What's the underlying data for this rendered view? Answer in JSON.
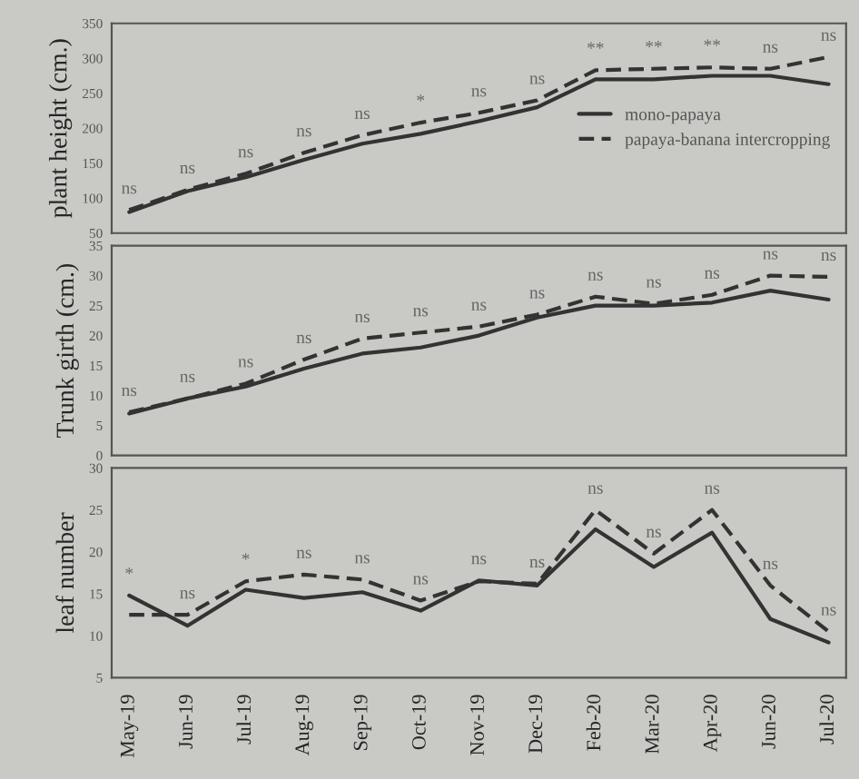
{
  "chart_data": [
    {
      "type": "line",
      "ylabel": "plant height (cm.)",
      "categories": [
        null,
        null,
        null,
        null,
        null,
        null,
        null,
        null,
        null,
        null,
        null,
        null,
        null
      ],
      "series": [
        {
          "name": "mono-papaya",
          "color": "#333333",
          "line_style": "solid",
          "values": [
            80,
            110,
            130,
            155,
            178,
            192,
            210,
            230,
            270,
            270,
            275,
            275,
            263
          ]
        },
        {
          "name": "papaya-banana intercropping",
          "color": "#333333",
          "line_style": "dashed",
          "values": [
            83,
            112,
            135,
            165,
            190,
            208,
            222,
            240,
            283,
            285,
            287,
            285,
            302
          ]
        }
      ],
      "ylim": [
        50,
        350
      ],
      "yticks": [
        50,
        100,
        150,
        200,
        250,
        300,
        350
      ],
      "tick_labels": "y",
      "legend": "right",
      "grid": false,
      "marker": "none",
      "annotations": [
        "ns",
        "ns",
        "ns",
        "ns",
        "ns",
        "*",
        "ns",
        "ns",
        "**",
        "**",
        "**",
        "ns",
        "ns"
      ]
    },
    {
      "type": "line",
      "ylabel": "Trunk girth (cm.)",
      "categories": [
        null,
        null,
        null,
        null,
        null,
        null,
        null,
        null,
        null,
        null,
        null,
        null,
        null
      ],
      "series": [
        {
          "color": "#333333",
          "line_style": "solid",
          "values": [
            7,
            9.5,
            11.5,
            14.5,
            17,
            18,
            20,
            23,
            25,
            25,
            25.5,
            27.5,
            26
          ]
        },
        {
          "color": "#333333",
          "line_style": "dashed",
          "values": [
            7.2,
            9.5,
            12,
            16,
            19.5,
            20.5,
            21.5,
            23.5,
            26.5,
            25.3,
            26.8,
            30,
            29.8
          ]
        }
      ],
      "ylim": [
        0,
        35
      ],
      "yticks": [
        0,
        5,
        10,
        15,
        20,
        25,
        30,
        35
      ],
      "tick_labels": "y",
      "legend": false,
      "grid": false,
      "marker": "none",
      "annotations": [
        "ns",
        "ns",
        "ns",
        "ns",
        "ns",
        "ns",
        "ns",
        "ns",
        "ns",
        "ns",
        "ns",
        "ns",
        "ns"
      ]
    },
    {
      "type": "line",
      "ylabel": "leaf number",
      "categories": [
        "May-19",
        "Jun-19",
        "Jul-19",
        "Aug-19",
        "Sep-19",
        "Oct-19",
        "Nov-19",
        "Dec-19",
        "Feb-20",
        "Mar-20",
        "Apr-20",
        "Jun-20",
        "Jul-20"
      ],
      "series": [
        {
          "color": "#333333",
          "line_style": "solid",
          "values": [
            14.8,
            11.2,
            15.5,
            14.5,
            15.2,
            13,
            16.6,
            16,
            22.7,
            18.2,
            22.3,
            12,
            9.2
          ]
        },
        {
          "color": "#333333",
          "line_style": "dashed",
          "values": [
            12.5,
            12.5,
            16.5,
            17.3,
            16.7,
            14.2,
            16.5,
            16.2,
            25,
            19.8,
            25,
            16,
            10.5
          ]
        }
      ],
      "ylim": [
        5,
        30
      ],
      "yticks": [
        5,
        10,
        15,
        20,
        25,
        30
      ],
      "legend": false,
      "grid": false,
      "marker": "none",
      "annotations": [
        "*",
        "ns",
        "*",
        "ns",
        "ns",
        "ns",
        "ns",
        "ns",
        "ns",
        "ns",
        "ns",
        "ns",
        "ns"
      ]
    }
  ]
}
